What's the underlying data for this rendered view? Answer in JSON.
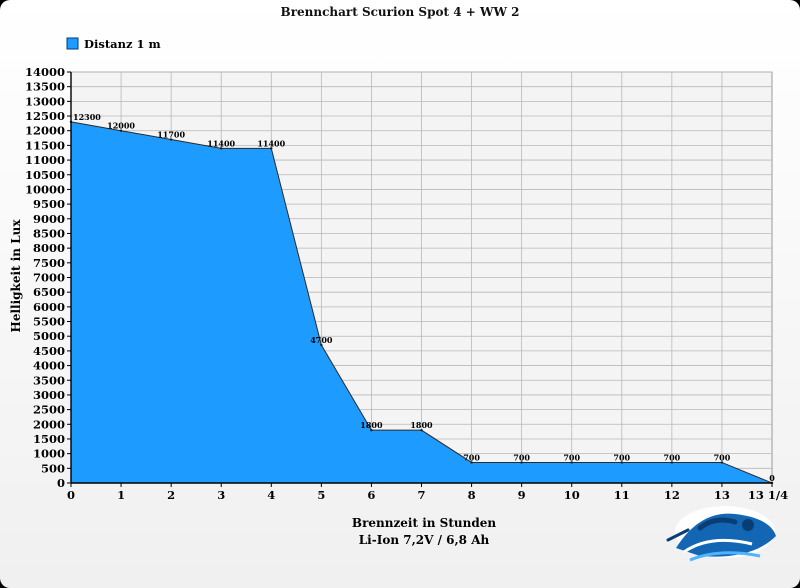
{
  "chart_data": {
    "type": "area",
    "title": "Brennchart Scurion Spot 4 + WW 2",
    "xlabel": "Brennzeit in Stunden",
    "xlabel2": "Li-Ion 7,2V / 6,8 Ah",
    "ylabel": "Helligkeit in Lux",
    "ylim": [
      0,
      14000
    ],
    "ytick_step": 500,
    "xlim": [
      0,
      14
    ],
    "x_tick_labels": [
      "0",
      "1",
      "2",
      "3",
      "4",
      "5",
      "6",
      "7",
      "8",
      "9",
      "10",
      "11",
      "12",
      "13",
      "13 1/4"
    ],
    "grid": true,
    "legend_position": "top-left",
    "series": [
      {
        "name": "Distanz 1 m",
        "color": "#1e9bff",
        "points": [
          {
            "x": 0,
            "y": 12300
          },
          {
            "x": 1,
            "y": 12000
          },
          {
            "x": 2,
            "y": 11700
          },
          {
            "x": 3,
            "y": 11400
          },
          {
            "x": 4,
            "y": 11400
          },
          {
            "x": 5,
            "y": 4700
          },
          {
            "x": 6,
            "y": 1800
          },
          {
            "x": 7,
            "y": 1800
          },
          {
            "x": 8,
            "y": 700
          },
          {
            "x": 9,
            "y": 700
          },
          {
            "x": 10,
            "y": 700
          },
          {
            "x": 11,
            "y": 700
          },
          {
            "x": 12,
            "y": 700
          },
          {
            "x": 13,
            "y": 700
          },
          {
            "x": 14,
            "y": 0
          }
        ]
      }
    ]
  }
}
